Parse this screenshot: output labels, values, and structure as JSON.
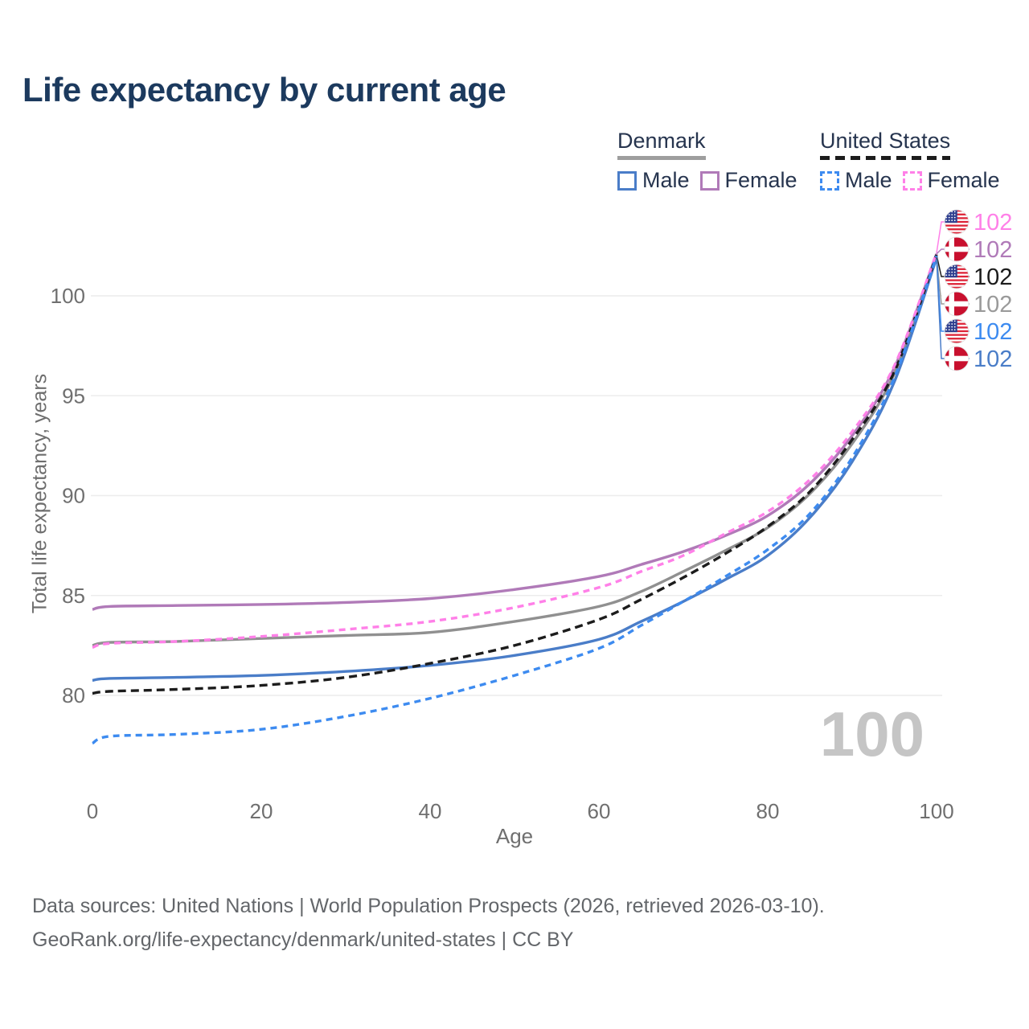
{
  "title": "Life expectancy by current age",
  "legend": {
    "groups": [
      {
        "name": "Denmark",
        "underline_style": "solid",
        "underline_color": "#9e9e9e",
        "items": [
          {
            "label": "Male",
            "color": "#4a7dc8",
            "dashed": false
          },
          {
            "label": "Female",
            "color": "#b07ab8",
            "dashed": false
          }
        ]
      },
      {
        "name": "United States",
        "underline_style": "dashed",
        "underline_color": "#1c1c1c",
        "items": [
          {
            "label": "Male",
            "color": "#3d8bf0",
            "dashed": true
          },
          {
            "label": "Female",
            "color": "#ff80e8",
            "dashed": true
          }
        ]
      }
    ]
  },
  "watermark_age": "100",
  "footer": {
    "line1": "Data sources: United Nations | World Population Prospects (2026, retrieved 2026-03-10).",
    "line2": "GeoRank.org/life-expectancy/denmark/united-states | CC BY"
  },
  "chart_data": {
    "type": "line",
    "title": "Life expectancy by current age",
    "xlabel": "Age",
    "ylabel": "Total life expectancy, years",
    "xlim": [
      0,
      100
    ],
    "ylim": [
      76,
      103.6
    ],
    "x_ticks": [
      0,
      20,
      40,
      60,
      80,
      100
    ],
    "y_ticks": [
      80,
      85,
      90,
      95,
      100
    ],
    "grid": "horizontal-only",
    "legend_position": "top-right",
    "x": [
      0,
      2,
      10,
      20,
      30,
      40,
      50,
      60,
      65,
      70,
      75,
      80,
      85,
      90,
      95,
      100
    ],
    "series": [
      {
        "name": "Denmark Female",
        "country": "Denmark",
        "sex": "Female",
        "color": "#b07ab8",
        "dashed": false,
        "end_value": 102,
        "values": [
          84.3,
          84.45,
          84.5,
          84.55,
          84.65,
          84.85,
          85.3,
          85.95,
          86.55,
          87.2,
          88.0,
          89.0,
          90.6,
          93.0,
          96.4,
          102.1
        ]
      },
      {
        "name": "Denmark Both sexes",
        "country": "Denmark",
        "sex": "All",
        "color": "#909090",
        "dashed": false,
        "end_value": 102,
        "values": [
          82.5,
          82.65,
          82.7,
          82.85,
          83.0,
          83.15,
          83.7,
          84.45,
          85.2,
          86.2,
          87.25,
          88.4,
          90.1,
          92.6,
          96.1,
          102.0
        ]
      },
      {
        "name": "Denmark Male",
        "country": "Denmark",
        "sex": "Male",
        "color": "#4a7dc8",
        "dashed": false,
        "end_value": 102,
        "values": [
          80.75,
          80.85,
          80.9,
          81.0,
          81.2,
          81.5,
          82.0,
          82.8,
          83.7,
          84.7,
          85.8,
          87.0,
          88.9,
          91.7,
          95.7,
          101.9
        ]
      },
      {
        "name": "United States Both sexes",
        "country": "United States",
        "sex": "All",
        "color": "#1c1c1c",
        "dashed": true,
        "dash_pattern": "10 6",
        "end_value": 102,
        "values": [
          80.1,
          80.2,
          80.3,
          80.5,
          80.9,
          81.6,
          82.5,
          83.8,
          84.8,
          85.9,
          87.1,
          88.45,
          90.2,
          92.8,
          96.2,
          102.05
        ]
      },
      {
        "name": "United States Female",
        "country": "United States",
        "sex": "Female",
        "color": "#ff80e8",
        "dashed": true,
        "dash_pattern": "8 6",
        "end_value": 102,
        "values": [
          82.4,
          82.6,
          82.7,
          82.95,
          83.3,
          83.7,
          84.4,
          85.4,
          86.2,
          87.0,
          88.1,
          89.2,
          90.8,
          93.2,
          96.5,
          102.15
        ]
      },
      {
        "name": "United States Male",
        "country": "United States",
        "sex": "Male",
        "color": "#3d8bf0",
        "dashed": true,
        "dash_pattern": "8 6",
        "end_value": 102,
        "values": [
          77.6,
          77.95,
          78.05,
          78.3,
          78.95,
          79.85,
          81.0,
          82.35,
          83.5,
          84.7,
          85.95,
          87.3,
          89.1,
          91.9,
          95.9,
          102.0
        ]
      }
    ],
    "end_labels": [
      {
        "flag": "us",
        "text": "102",
        "color": "#ff80e8",
        "series": "United States Female"
      },
      {
        "flag": "dk",
        "text": "102",
        "color": "#b07ab8",
        "series": "Denmark Female"
      },
      {
        "flag": "us",
        "text": "102",
        "color": "#1c1c1c",
        "series": "United States Both sexes"
      },
      {
        "flag": "dk",
        "text": "102",
        "color": "#9a9a9a",
        "series": "Denmark Both sexes"
      },
      {
        "flag": "us",
        "text": "102",
        "color": "#3d8bf0",
        "series": "United States Male"
      },
      {
        "flag": "dk",
        "text": "102",
        "color": "#4a7dc8",
        "series": "Denmark Male"
      }
    ]
  }
}
